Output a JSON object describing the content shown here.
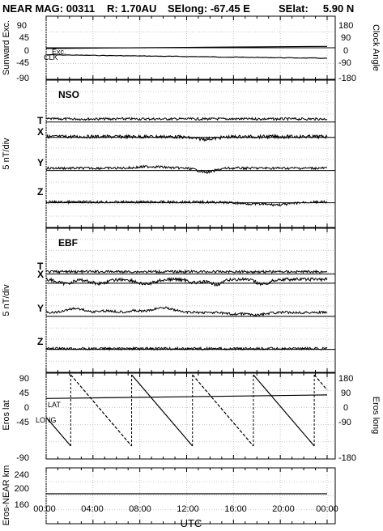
{
  "header": {
    "mission": "NEAR MAG: 00311",
    "r": "R: 1.70AU",
    "selong": "SElong:  -67.45 E",
    "selat": "SElat:     5.90 N"
  },
  "chart_data": [
    {
      "type": "line",
      "panel": 1,
      "ylabel_left": "Sunward Exc.",
      "ylabel_right": "Clock Angle",
      "ticks_left": [
        "90",
        "45",
        "0",
        "-45",
        "-90"
      ],
      "ticks_right": [
        "180",
        "90",
        "0",
        "-90",
        "-180"
      ],
      "ylim_left": [
        -90,
        90
      ],
      "ylim_right": [
        -180,
        180
      ],
      "series_labels": [
        "Exc.",
        "CLK"
      ],
      "series": [
        {
          "name": "Exc.",
          "x": [
            0,
            4,
            8,
            12,
            16,
            20,
            24
          ],
          "values": [
            -2,
            -1,
            0,
            1,
            2,
            3,
            4
          ]
        },
        {
          "name": "CLK",
          "x": [
            0,
            4,
            8,
            12,
            16,
            20,
            24
          ],
          "values": [
            -40,
            -45,
            -50,
            -52,
            -55,
            -57,
            -60
          ]
        }
      ],
      "grid": true
    },
    {
      "type": "line",
      "panel": 2,
      "title": "NSO",
      "ylabel": "5 nT/div",
      "series_labels": [
        "T",
        "X",
        "Y",
        "Z"
      ],
      "baselines_div": [
        -4.5,
        -6.5,
        -10.8,
        -15
      ],
      "offset_div": [
        0.4,
        0.1,
        0.3,
        0.1
      ],
      "grid": true
    },
    {
      "type": "line",
      "panel": 3,
      "title": "EBF",
      "ylabel": "5 nT/div",
      "series_labels": [
        "T",
        "X",
        "Y",
        "Z"
      ],
      "baselines_div": [
        -5.0,
        -6.2,
        -10.5,
        -14.8
      ],
      "offset_div": [
        0.3,
        0.5,
        0.5,
        0.1
      ],
      "grid": true
    },
    {
      "type": "line",
      "panel": 4,
      "ylabel_left": "Eros lat",
      "ylabel_right": "Eros long",
      "ticks_left": [
        "90",
        "45",
        "0",
        "-45",
        "-90"
      ],
      "ticks_right": [
        "180",
        "90",
        "0",
        "-90",
        "-180"
      ],
      "ylim_left": [
        -90,
        90
      ],
      "ylim_right": [
        -180,
        180
      ],
      "series_labels": [
        "LAT",
        "LONG"
      ],
      "lat_series": {
        "name": "LAT",
        "x": [
          0,
          24
        ],
        "values": [
          30,
          39
        ]
      },
      "long_peaks_hr": [
        2.1,
        7.3,
        12.5,
        17.7,
        22.9
      ],
      "long_range_deg": [
        -180,
        180
      ],
      "grid": true
    },
    {
      "type": "line",
      "panel": 5,
      "ylabel": "Eros-NEAR km",
      "ticks_left": [
        "240",
        "200",
        "160"
      ],
      "ylim": [
        125,
        265
      ],
      "series": [
        {
          "name": "",
          "x": [
            0,
            24
          ],
          "values": [
            200,
            200
          ]
        }
      ],
      "grid": true
    }
  ],
  "x_axis": {
    "xlabel": "UTC",
    "xlim": [
      0,
      24
    ],
    "ticks": [
      "00:00",
      "04:00",
      "08:00",
      "12:00",
      "16:00",
      "20:00",
      "00:00"
    ]
  }
}
